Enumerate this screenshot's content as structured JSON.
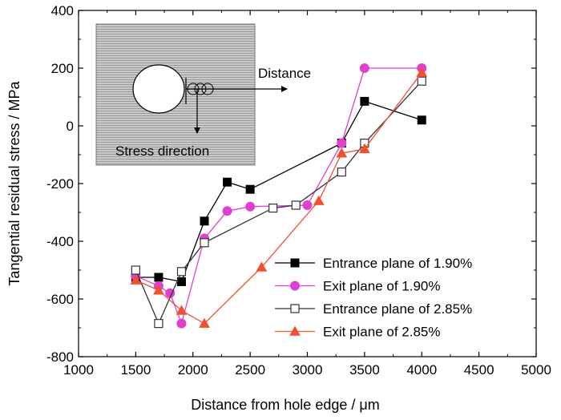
{
  "chart_data": {
    "type": "line",
    "title": "",
    "xlabel": "Distance from hole edge / μm",
    "ylabel": "Tangential residual stress / MPa",
    "xlim": [
      1000,
      5000
    ],
    "ylim": [
      -800,
      400
    ],
    "x_ticks": [
      1000,
      1500,
      2000,
      2500,
      3000,
      3500,
      4000,
      4500,
      5000
    ],
    "y_ticks": [
      -800,
      -600,
      -400,
      -200,
      0,
      200,
      400
    ],
    "x_tick_labels": [
      "1000",
      "1500",
      "2000",
      "2500",
      "3000",
      "3500",
      "4000",
      "4500",
      "5000"
    ],
    "y_tick_labels": [
      "-800",
      "-600",
      "-400",
      "-200",
      "0",
      "200",
      "400"
    ],
    "grid": false,
    "legend_position": "bottom-right",
    "series": [
      {
        "name": "Entrance plane of 1.90%",
        "color": "#000000",
        "marker": "filled-square",
        "x": [
          1500,
          1700,
          1900,
          2100,
          2300,
          2500,
          3300,
          3500,
          4000
        ],
        "y": [
          -525,
          -525,
          -540,
          -330,
          -195,
          -220,
          -60,
          85,
          20
        ]
      },
      {
        "name": "Exit plane of 1.90%",
        "color": "#e040d0",
        "marker": "filled-circle",
        "x": [
          1500,
          1700,
          1800,
          1900,
          2100,
          2300,
          2500,
          3000,
          3300,
          3500,
          4000
        ],
        "y": [
          -520,
          -555,
          -580,
          -685,
          -390,
          -295,
          -280,
          -275,
          -60,
          200,
          200
        ]
      },
      {
        "name": "Entrance plane of 2.85%",
        "color": "#333333",
        "marker": "open-square",
        "x": [
          1500,
          1700,
          1900,
          2100,
          2700,
          2900,
          3300,
          3500,
          4000
        ],
        "y": [
          -500,
          -685,
          -505,
          -405,
          -285,
          -275,
          -160,
          -60,
          155
        ]
      },
      {
        "name": "Exit plane of 2.85%",
        "color": "#f05030",
        "marker": "filled-triangle",
        "x": [
          1500,
          1700,
          1900,
          2100,
          2600,
          3100,
          3300,
          3500,
          4000
        ],
        "y": [
          -535,
          -570,
          -640,
          -685,
          -490,
          -260,
          -95,
          -80,
          185
        ]
      }
    ],
    "inset": {
      "label_distance": "Distance",
      "label_stress": "Stress direction"
    }
  }
}
